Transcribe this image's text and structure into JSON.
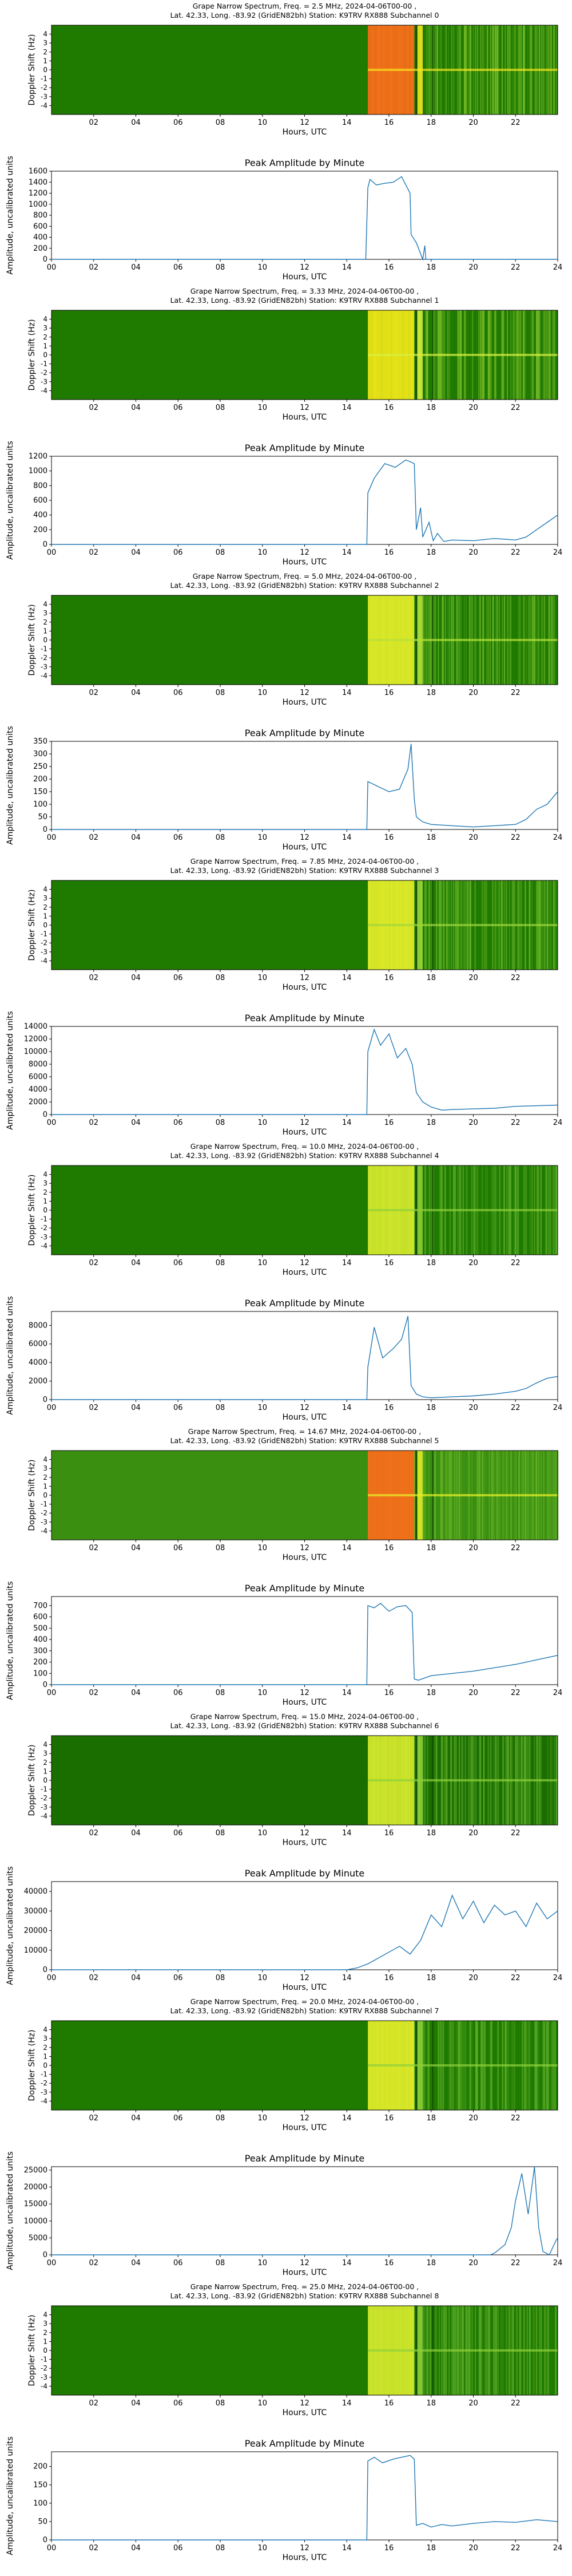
{
  "chart_data": [
    {
      "type": "heatmap",
      "title_line1": "Grape Narrow Spectrum, Freq. = 2.5 MHz, 2024-04-06T00-00 ,",
      "title_line2": "Lat.  42.33, Long. -83.92 (GridEN82bh) Station: K9TRV RX888 Subchannel 0",
      "xlabel": "Hours, UTC",
      "ylabel": "Doppler Shift (Hz)",
      "xticks": [
        "02",
        "04",
        "06",
        "08",
        "10",
        "12",
        "14",
        "16",
        "18",
        "20",
        "22"
      ],
      "yticks": [
        "4",
        "3",
        "2",
        "1",
        "0",
        "-1",
        "-2",
        "-3",
        "-4"
      ],
      "xlim": [
        0,
        24
      ],
      "ylim": [
        -5,
        5
      ],
      "colors": {
        "background": "#1f7a00",
        "bright": "#ff6a1a",
        "mid": "#f6e61c",
        "speckle": "#7cbf2a"
      }
    },
    {
      "type": "line",
      "title": "Peak Amplitude by Minute",
      "xlabel": "Hours, UTC",
      "ylabel": "Amplitude, uncalibrated units",
      "xticks": [
        "00",
        "02",
        "04",
        "06",
        "08",
        "10",
        "12",
        "14",
        "16",
        "18",
        "20",
        "22",
        "24"
      ],
      "yticks": [
        "0",
        "200",
        "400",
        "600",
        "800",
        "1000",
        "1200",
        "1400",
        "1600"
      ],
      "xlim": [
        0,
        24
      ],
      "ylim": [
        0,
        1600
      ],
      "x": [
        0,
        14.9,
        15.0,
        15.1,
        15.4,
        15.8,
        16.2,
        16.6,
        17.0,
        17.05,
        17.3,
        17.6,
        17.7,
        17.75,
        18.0,
        24
      ],
      "y": [
        0,
        0,
        1300,
        1450,
        1350,
        1380,
        1400,
        1500,
        1200,
        450,
        300,
        0,
        250,
        0,
        0,
        0
      ]
    },
    {
      "type": "heatmap",
      "title_line1": "Grape Narrow Spectrum, Freq. = 3.33 MHz, 2024-04-06T00-00 ,",
      "title_line2": "Lat.  42.33, Long. -83.92 (GridEN82bh) Station: K9TRV RX888 Subchannel 1",
      "xlabel": "Hours, UTC",
      "ylabel": "Doppler Shift (Hz)",
      "xticks": [
        "02",
        "04",
        "06",
        "08",
        "10",
        "12",
        "14",
        "16",
        "18",
        "20",
        "22"
      ],
      "yticks": [
        "4",
        "3",
        "2",
        "1",
        "0",
        "-1",
        "-2",
        "-3",
        "-4"
      ],
      "xlim": [
        0,
        24
      ],
      "ylim": [
        -5,
        5
      ],
      "colors": {
        "background": "#1f7a00",
        "bright": "#f3e817",
        "mid": "#d9f040",
        "speckle": "#7cbf2a"
      }
    },
    {
      "type": "line",
      "title": "Peak Amplitude by Minute",
      "xlabel": "Hours, UTC",
      "ylabel": "Amplitude, uncalibrated units",
      "xticks": [
        "00",
        "02",
        "04",
        "06",
        "08",
        "10",
        "12",
        "14",
        "16",
        "18",
        "20",
        "22",
        "24"
      ],
      "yticks": [
        "0",
        "200",
        "400",
        "600",
        "800",
        "1000",
        "1200"
      ],
      "xlim": [
        0,
        24
      ],
      "ylim": [
        0,
        1200
      ],
      "x": [
        0,
        14.95,
        15.0,
        15.3,
        15.8,
        16.3,
        16.8,
        17.2,
        17.3,
        17.5,
        17.6,
        17.9,
        18.1,
        18.3,
        18.6,
        19,
        20,
        21,
        22,
        22.5,
        23,
        23.5,
        24
      ],
      "y": [
        0,
        0,
        700,
        900,
        1100,
        1050,
        1150,
        1100,
        200,
        500,
        100,
        300,
        50,
        150,
        40,
        60,
        50,
        80,
        60,
        100,
        200,
        300,
        400
      ]
    },
    {
      "type": "heatmap",
      "title_line1": "Grape Narrow Spectrum, Freq. = 5.0 MHz, 2024-04-06T00-00 ,",
      "title_line2": "Lat.  42.33, Long. -83.92 (GridEN82bh) Station: K9TRV RX888 Subchannel 2",
      "xlabel": "Hours, UTC",
      "ylabel": "Doppler Shift (Hz)",
      "xticks": [
        "02",
        "04",
        "06",
        "08",
        "10",
        "12",
        "14",
        "16",
        "18",
        "20",
        "22"
      ],
      "yticks": [
        "4",
        "3",
        "2",
        "1",
        "0",
        "-1",
        "-2",
        "-3",
        "-4"
      ],
      "xlim": [
        0,
        24
      ],
      "ylim": [
        -5,
        5
      ],
      "colors": {
        "background": "#1f7a00",
        "bright": "#e8f02a",
        "mid": "#b5e03a",
        "speckle": "#6cb82a"
      }
    },
    {
      "type": "line",
      "title": "Peak Amplitude by Minute",
      "xlabel": "Hours, UTC",
      "ylabel": "Amplitude, uncalibrated units",
      "xticks": [
        "00",
        "02",
        "04",
        "06",
        "08",
        "10",
        "12",
        "14",
        "16",
        "18",
        "20",
        "22",
        "24"
      ],
      "yticks": [
        "0",
        "50",
        "100",
        "150",
        "200",
        "250",
        "300",
        "350"
      ],
      "xlim": [
        0,
        24
      ],
      "ylim": [
        0,
        350
      ],
      "x": [
        0,
        14.95,
        15.0,
        15.5,
        16.0,
        16.5,
        16.9,
        17.05,
        17.2,
        17.3,
        17.6,
        18.0,
        19,
        20,
        21,
        22,
        22.5,
        23,
        23.5,
        24
      ],
      "y": [
        0,
        0,
        190,
        170,
        150,
        160,
        240,
        340,
        120,
        50,
        30,
        20,
        15,
        10,
        15,
        20,
        40,
        80,
        100,
        150
      ]
    },
    {
      "type": "heatmap",
      "title_line1": "Grape Narrow Spectrum, Freq. = 7.85 MHz, 2024-04-06T00-00 ,",
      "title_line2": "Lat.  42.33, Long. -83.92 (GridEN82bh) Station: K9TRV RX888 Subchannel 3",
      "xlabel": "Hours, UTC",
      "ylabel": "Doppler Shift (Hz)",
      "xticks": [
        "02",
        "04",
        "06",
        "08",
        "10",
        "12",
        "14",
        "16",
        "18",
        "20",
        "22"
      ],
      "yticks": [
        "4",
        "3",
        "2",
        "1",
        "0",
        "-1",
        "-2",
        "-3",
        "-4"
      ],
      "xlim": [
        0,
        24
      ],
      "ylim": [
        -5,
        5
      ],
      "colors": {
        "background": "#1f7a00",
        "bright": "#e8f02a",
        "mid": "#9fd63a",
        "speckle": "#6cb82a"
      }
    },
    {
      "type": "line",
      "title": "Peak Amplitude by Minute",
      "xlabel": "Hours, UTC",
      "ylabel": "Amplitude, uncalibrated units",
      "xticks": [
        "00",
        "02",
        "04",
        "06",
        "08",
        "10",
        "12",
        "14",
        "16",
        "18",
        "20",
        "22",
        "24"
      ],
      "yticks": [
        "0",
        "2000",
        "4000",
        "6000",
        "8000",
        "10000",
        "12000",
        "14000"
      ],
      "xlim": [
        0,
        24
      ],
      "ylim": [
        0,
        14000
      ],
      "x": [
        0,
        14.95,
        15.0,
        15.3,
        15.6,
        16.0,
        16.4,
        16.8,
        17.1,
        17.3,
        17.6,
        18.0,
        18.5,
        19,
        20,
        21,
        22,
        23,
        24
      ],
      "y": [
        0,
        0,
        10000,
        13500,
        11000,
        12800,
        9000,
        10500,
        8000,
        3500,
        2000,
        1200,
        700,
        800,
        900,
        1000,
        1300,
        1400,
        1500
      ]
    },
    {
      "type": "heatmap",
      "title_line1": "Grape Narrow Spectrum, Freq. = 10.0 MHz, 2024-04-06T00-00 ,",
      "title_line2": "Lat.  42.33, Long. -83.92 (GridEN82bh) Station: K9TRV RX888 Subchannel 4",
      "xlabel": "Hours, UTC",
      "ylabel": "Doppler Shift (Hz)",
      "xticks": [
        "02",
        "04",
        "06",
        "08",
        "10",
        "12",
        "14",
        "16",
        "18",
        "20",
        "22"
      ],
      "yticks": [
        "4",
        "3",
        "2",
        "1",
        "0",
        "-1",
        "-2",
        "-3",
        "-4"
      ],
      "xlim": [
        0,
        24
      ],
      "ylim": [
        -5,
        5
      ],
      "colors": {
        "background": "#1f7a00",
        "bright": "#d9ec2e",
        "mid": "#8fd03a",
        "speckle": "#5faf2a"
      }
    },
    {
      "type": "line",
      "title": "Peak Amplitude by Minute",
      "xlabel": "Hours, UTC",
      "ylabel": "Amplitude, uncalibrated units",
      "xticks": [
        "00",
        "02",
        "04",
        "06",
        "08",
        "10",
        "12",
        "14",
        "16",
        "18",
        "20",
        "22",
        "24"
      ],
      "yticks": [
        "0",
        "2000",
        "4000",
        "6000",
        "8000"
      ],
      "xlim": [
        0,
        24
      ],
      "ylim": [
        0,
        9500
      ],
      "x": [
        0,
        14.95,
        15.0,
        15.3,
        15.7,
        16.2,
        16.6,
        16.9,
        17.05,
        17.3,
        17.6,
        18,
        19,
        20,
        21,
        22,
        22.5,
        23,
        23.5,
        24
      ],
      "y": [
        0,
        0,
        3500,
        7800,
        4500,
        5500,
        6500,
        9000,
        1500,
        600,
        300,
        200,
        300,
        400,
        600,
        900,
        1200,
        1800,
        2300,
        2500
      ]
    },
    {
      "type": "heatmap",
      "title_line1": "Grape Narrow Spectrum, Freq. = 14.67 MHz, 2024-04-06T00-00 ,",
      "title_line2": "Lat.  42.33, Long. -83.92 (GridEN82bh) Station: K9TRV RX888 Subchannel 5",
      "xlabel": "Hours, UTC",
      "ylabel": "Doppler Shift (Hz)",
      "xticks": [
        "02",
        "04",
        "06",
        "08",
        "10",
        "12",
        "14",
        "16",
        "18",
        "20",
        "22"
      ],
      "yticks": [
        "4",
        "3",
        "2",
        "1",
        "0",
        "-1",
        "-2",
        "-3",
        "-4"
      ],
      "xlim": [
        0,
        24
      ],
      "ylim": [
        -5,
        5
      ],
      "colors": {
        "background": "#3a8f10",
        "bright": "#ff6a1a",
        "mid": "#e8f02a",
        "speckle": "#6cb82a"
      }
    },
    {
      "type": "line",
      "title": "Peak Amplitude by Minute",
      "xlabel": "Hours, UTC",
      "ylabel": "Amplitude, uncalibrated units",
      "xticks": [
        "00",
        "02",
        "04",
        "06",
        "08",
        "10",
        "12",
        "14",
        "16",
        "18",
        "20",
        "22",
        "24"
      ],
      "yticks": [
        "0",
        "100",
        "200",
        "300",
        "400",
        "500",
        "600",
        "700"
      ],
      "xlim": [
        0,
        24
      ],
      "ylim": [
        0,
        780
      ],
      "x": [
        0,
        14.95,
        15.0,
        15.3,
        15.6,
        16.0,
        16.4,
        16.8,
        17.1,
        17.2,
        17.4,
        17.7,
        18,
        19,
        20,
        21,
        22,
        23,
        24
      ],
      "y": [
        0,
        0,
        700,
        680,
        720,
        650,
        690,
        700,
        640,
        50,
        40,
        60,
        80,
        100,
        120,
        150,
        180,
        220,
        260
      ]
    },
    {
      "type": "heatmap",
      "title_line1": "Grape Narrow Spectrum, Freq. = 15.0 MHz, 2024-04-06T00-00 ,",
      "title_line2": "Lat.  42.33, Long. -83.92 (GridEN82bh) Station: K9TRV RX888 Subchannel 6",
      "xlabel": "Hours, UTC",
      "ylabel": "Doppler Shift (Hz)",
      "xticks": [
        "02",
        "04",
        "06",
        "08",
        "10",
        "12",
        "14",
        "16",
        "18",
        "20",
        "22"
      ],
      "yticks": [
        "4",
        "3",
        "2",
        "1",
        "0",
        "-1",
        "-2",
        "-3",
        "-4"
      ],
      "xlim": [
        0,
        24
      ],
      "ylim": [
        -5,
        5
      ],
      "colors": {
        "background": "#1a6e00",
        "bright": "#d9ec2e",
        "mid": "#8fd03a",
        "speckle": "#5faf2a"
      }
    },
    {
      "type": "line",
      "title": "Peak Amplitude by Minute",
      "xlabel": "Hours, UTC",
      "ylabel": "Amplitude, uncalibrated units",
      "xticks": [
        "00",
        "02",
        "04",
        "06",
        "08",
        "10",
        "12",
        "14",
        "16",
        "18",
        "20",
        "22",
        "24"
      ],
      "yticks": [
        "0",
        "10000",
        "20000",
        "30000",
        "40000"
      ],
      "xlim": [
        0,
        24
      ],
      "ylim": [
        0,
        45000
      ],
      "x": [
        0,
        14.0,
        14.5,
        15.0,
        15.5,
        16.0,
        16.5,
        17.0,
        17.5,
        18.0,
        18.5,
        19.0,
        19.5,
        20.0,
        20.5,
        21.0,
        21.5,
        22.0,
        22.5,
        23.0,
        23.5,
        24
      ],
      "y": [
        0,
        0,
        1000,
        3000,
        6000,
        9000,
        12000,
        8000,
        15000,
        28000,
        22000,
        38000,
        26000,
        35000,
        24000,
        33000,
        28000,
        30000,
        22000,
        34000,
        26000,
        30000
      ]
    },
    {
      "type": "heatmap",
      "title_line1": "Grape Narrow Spectrum, Freq. = 20.0 MHz, 2024-04-06T00-00 ,",
      "title_line2": "Lat.  42.33, Long. -83.92 (GridEN82bh) Station: K9TRV RX888 Subchannel 7",
      "xlabel": "Hours, UTC",
      "ylabel": "Doppler Shift (Hz)",
      "xticks": [
        "02",
        "04",
        "06",
        "08",
        "10",
        "12",
        "14",
        "16",
        "18",
        "20",
        "22"
      ],
      "yticks": [
        "4",
        "3",
        "2",
        "1",
        "0",
        "-1",
        "-2",
        "-3",
        "-4"
      ],
      "xlim": [
        0,
        24
      ],
      "ylim": [
        -5,
        5
      ],
      "colors": {
        "background": "#1f7a00",
        "bright": "#e8f02a",
        "mid": "#8fd03a",
        "speckle": "#5faf2a"
      }
    },
    {
      "type": "line",
      "title": "Peak Amplitude by Minute",
      "xlabel": "Hours, UTC",
      "ylabel": "Amplitude, uncalibrated units",
      "xticks": [
        "00",
        "02",
        "04",
        "06",
        "08",
        "10",
        "12",
        "14",
        "16",
        "18",
        "20",
        "22",
        "24"
      ],
      "yticks": [
        "0",
        "5000",
        "10000",
        "15000",
        "20000",
        "25000"
      ],
      "xlim": [
        0,
        24
      ],
      "ylim": [
        0,
        26000
      ],
      "x": [
        0,
        20.8,
        21.0,
        21.5,
        21.8,
        22.0,
        22.3,
        22.6,
        22.9,
        23.1,
        23.3,
        23.6,
        23.9,
        24
      ],
      "y": [
        0,
        0,
        500,
        3000,
        8000,
        16000,
        24000,
        12000,
        26000,
        8000,
        1000,
        0,
        4000,
        5000
      ]
    },
    {
      "type": "heatmap",
      "title_line1": "Grape Narrow Spectrum, Freq. = 25.0 MHz, 2024-04-06T00-00 ,",
      "title_line2": "Lat.  42.33, Long. -83.92 (GridEN82bh) Station: K9TRV RX888 Subchannel 8",
      "xlabel": "Hours, UTC",
      "ylabel": "Doppler Shift (Hz)",
      "xticks": [
        "02",
        "04",
        "06",
        "08",
        "10",
        "12",
        "14",
        "16",
        "18",
        "20",
        "22"
      ],
      "yticks": [
        "4",
        "3",
        "2",
        "1",
        "0",
        "-1",
        "-2",
        "-3",
        "-4"
      ],
      "xlim": [
        0,
        24
      ],
      "ylim": [
        -5,
        5
      ],
      "colors": {
        "background": "#1f7a00",
        "bright": "#d9ec2e",
        "mid": "#8fd03a",
        "speckle": "#5faf2a"
      }
    },
    {
      "type": "line",
      "title": "Peak Amplitude by Minute",
      "xlabel": "Hours, UTC",
      "ylabel": "Amplitude, uncalibrated units",
      "xticks": [
        "00",
        "02",
        "04",
        "06",
        "08",
        "10",
        "12",
        "14",
        "16",
        "18",
        "20",
        "22",
        "24"
      ],
      "yticks": [
        "0",
        "50",
        "100",
        "150",
        "200"
      ],
      "xlim": [
        0,
        24
      ],
      "ylim": [
        0,
        240
      ],
      "x": [
        0,
        14.95,
        15.0,
        15.3,
        15.7,
        16.2,
        16.6,
        17.0,
        17.2,
        17.3,
        17.6,
        18,
        18.5,
        19,
        20,
        21,
        22,
        23,
        24
      ],
      "y": [
        0,
        0,
        215,
        225,
        210,
        220,
        225,
        230,
        220,
        40,
        45,
        35,
        42,
        38,
        45,
        50,
        48,
        55,
        50
      ]
    }
  ]
}
